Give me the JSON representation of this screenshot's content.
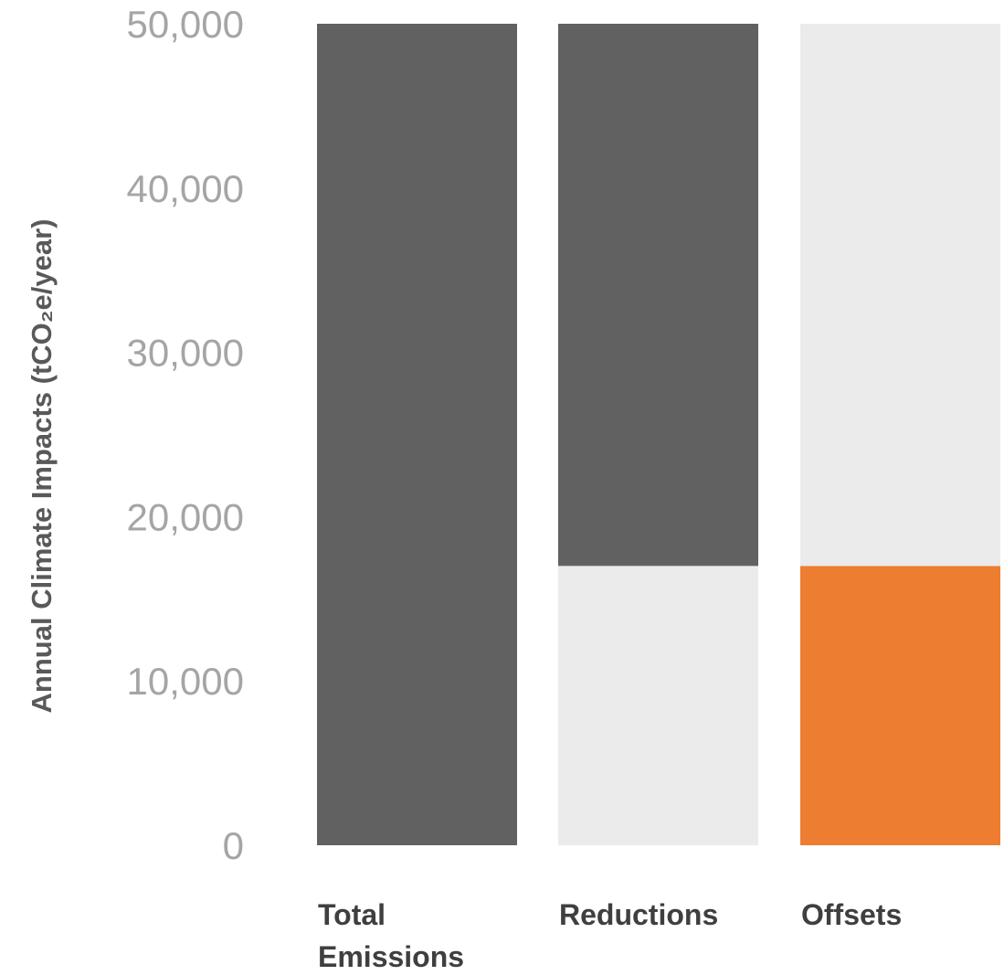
{
  "chart_data": {
    "type": "bar",
    "ylabel": "Annual Climate Impacts (tCO₂e/year)",
    "ylim": [
      0,
      50000
    ],
    "yticks": [
      "0",
      "10,000",
      "20,000",
      "30,000",
      "40,000",
      "50,000"
    ],
    "grid": false,
    "categories": [
      [
        "Total",
        "Emissions"
      ],
      [
        "Reductions"
      ],
      [
        "Offsets"
      ]
    ],
    "bars": [
      {
        "category": "Total Emissions",
        "segments": [
          {
            "from": 0,
            "to": 50000,
            "color": "#616161"
          }
        ]
      },
      {
        "category": "Reductions",
        "segments": [
          {
            "from": 0,
            "to": 17000,
            "color": "#ebebeb"
          },
          {
            "from": 17000,
            "to": 50000,
            "color": "#616161"
          }
        ]
      },
      {
        "category": "Offsets",
        "segments": [
          {
            "from": 0,
            "to": 17000,
            "color": "#ed7d31"
          },
          {
            "from": 17000,
            "to": 50000,
            "color": "#ebebeb"
          }
        ]
      }
    ]
  }
}
